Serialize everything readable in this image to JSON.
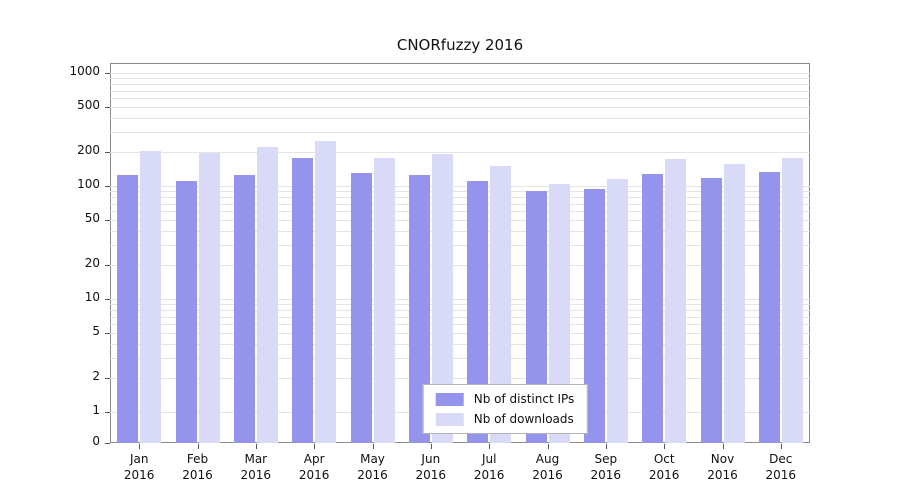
{
  "chart_data": {
    "type": "bar",
    "title": "CNORfuzzy 2016",
    "year_label": "2016",
    "categories": [
      "Jan",
      "Feb",
      "Mar",
      "Apr",
      "May",
      "Jun",
      "Jul",
      "Aug",
      "Sep",
      "Oct",
      "Nov",
      "Dec"
    ],
    "series": [
      {
        "name": "Nb of distinct IPs",
        "color": "#9494ec",
        "values": [
          125,
          110,
          126,
          178,
          130,
          126,
          110,
          90,
          95,
          128,
          118,
          134
        ]
      },
      {
        "name": "Nb of downloads",
        "color": "#d9d9f8",
        "values": [
          205,
          196,
          220,
          252,
          178,
          192,
          152,
          104,
          115,
          172,
          158,
          178
        ]
      }
    ],
    "y_ticks": [
      0,
      1,
      2,
      5,
      10,
      20,
      50,
      100,
      200,
      500,
      1000
    ],
    "y_scale": "log",
    "ylim": [
      0,
      1000
    ],
    "grid": true,
    "legend_position": "bottom-center-inside"
  }
}
